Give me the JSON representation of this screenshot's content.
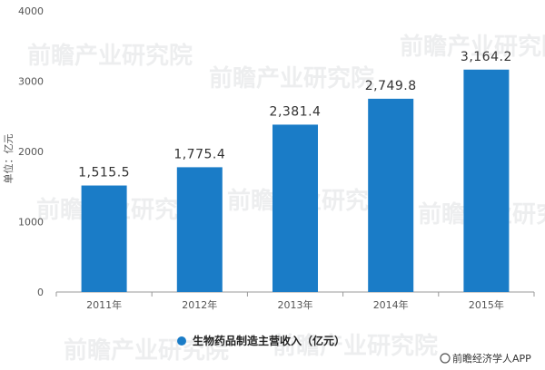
{
  "chart_data": {
    "type": "bar",
    "categories": [
      "2011年",
      "2012年",
      "2013年",
      "2014年",
      "2015年"
    ],
    "series": [
      {
        "name": "生物药品制造主营收入（亿元）",
        "values": [
          1515.5,
          1775.4,
          2381.4,
          2749.8,
          3164.2
        ]
      }
    ],
    "data_labels": [
      "1,515.5",
      "1,775.4",
      "2,381.4",
      "2,749.8",
      "3,164.2"
    ],
    "ylabel": "单位：亿元",
    "xlabel": "",
    "ylim": [
      0,
      4000
    ],
    "yticks": [
      0,
      1000,
      2000,
      3000,
      4000
    ],
    "grid": false,
    "legend_position": "bottom-center",
    "colors": {
      "bar": "#1a7cc7",
      "axis": "#999999"
    }
  },
  "watermark": {
    "text": "前瞻产业研究院"
  },
  "credit": {
    "text": "前瞻经济学人APP"
  }
}
